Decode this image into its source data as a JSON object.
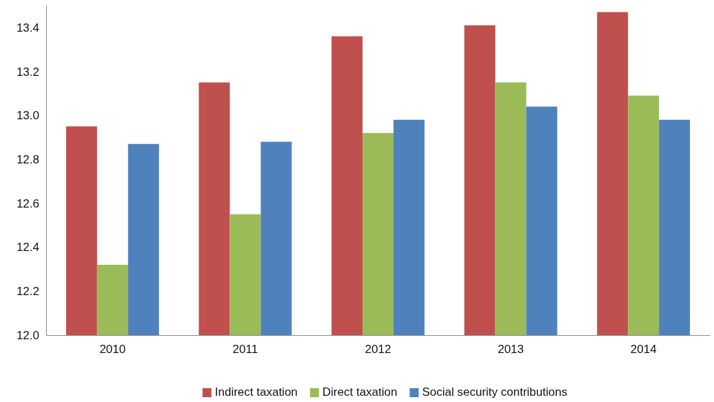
{
  "chart_data": {
    "type": "bar",
    "categories": [
      "2010",
      "2011",
      "2012",
      "2013",
      "2014"
    ],
    "series": [
      {
        "name": "Indirect taxation",
        "color": "#c0504d",
        "values": [
          12.95,
          13.15,
          13.36,
          13.41,
          13.47
        ]
      },
      {
        "name": "Direct taxation",
        "color": "#9bbb59",
        "values": [
          12.32,
          12.55,
          12.92,
          13.15,
          13.09
        ]
      },
      {
        "name": "Social security contributions",
        "color": "#4f81bd",
        "values": [
          12.87,
          12.88,
          12.98,
          13.04,
          12.98
        ]
      }
    ],
    "ylim": [
      12.0,
      13.5
    ],
    "yticks": [
      {
        "value": 12.0,
        "label": "12.0"
      },
      {
        "value": 12.2,
        "label": "12.2"
      },
      {
        "value": 12.4,
        "label": "12.4"
      },
      {
        "value": 12.6,
        "label": "12.6"
      },
      {
        "value": 12.8,
        "label": "12.8"
      },
      {
        "value": 13.0,
        "label": "13.0"
      },
      {
        "value": 13.2,
        "label": "13.2"
      },
      {
        "value": 13.4,
        "label": "13.4"
      }
    ],
    "grid": false,
    "legend": "bottom"
  }
}
